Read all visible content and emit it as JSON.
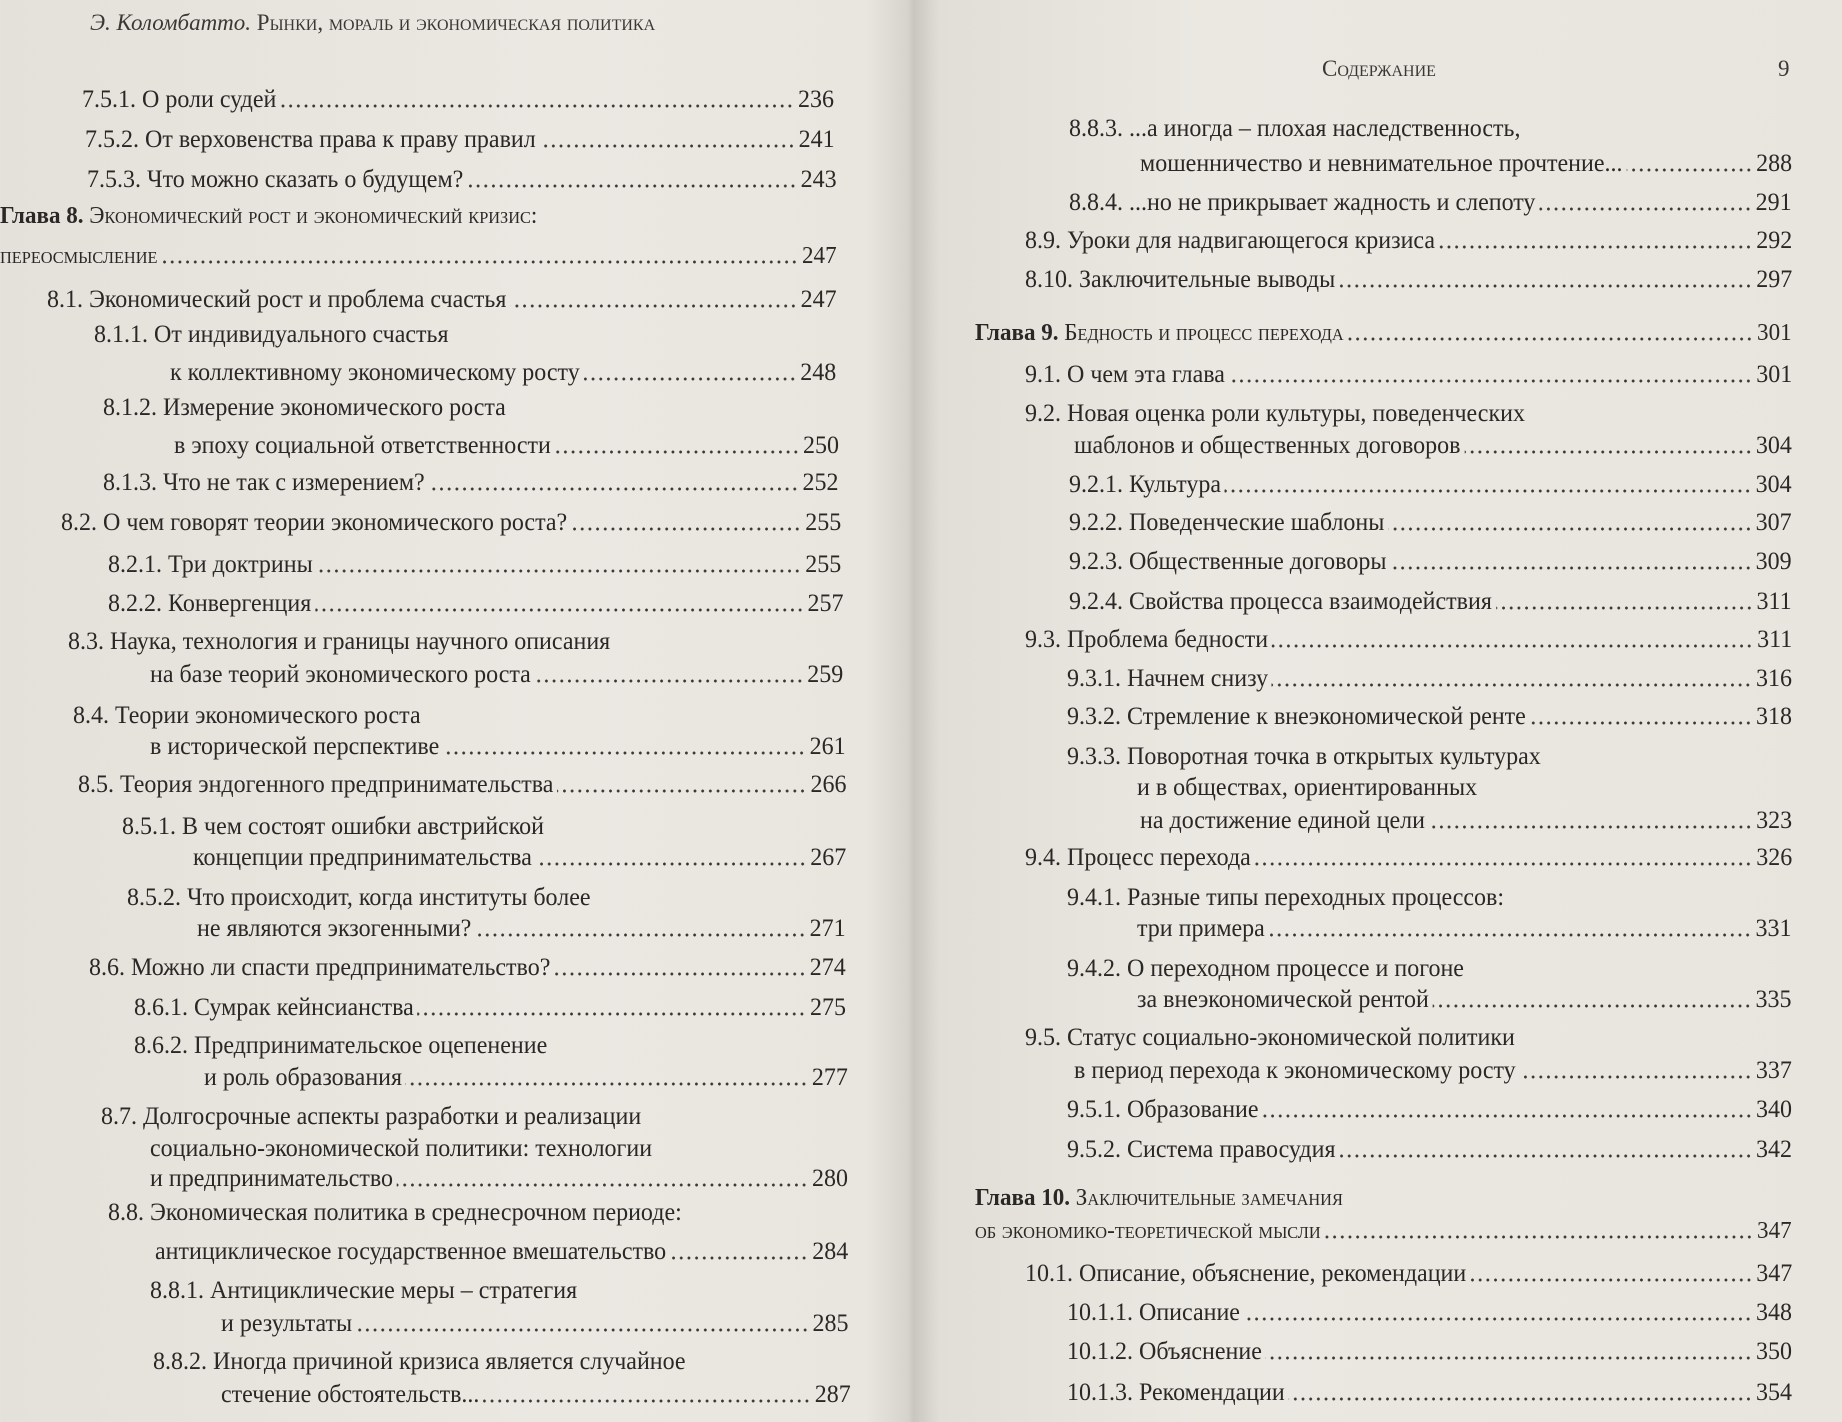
{
  "left_page": {
    "running_head": {
      "author": "Э. Коломбатто.",
      "title": "Рынки, мораль и экономическая политика"
    },
    "entries": [
      {
        "lines": [
          "7.5.1. О роли судей"
        ],
        "page": "236"
      },
      {
        "lines": [
          "7.5.2. От верховенства права к праву правил"
        ],
        "page": "241"
      },
      {
        "lines": [
          "7.5.3. Что можно сказать о будущем?"
        ],
        "page": "243"
      },
      {
        "chapter": "Глава 8.",
        "lines": [
          "Экономический рост и экономический кризис:",
          "переосмысление"
        ],
        "page": "247"
      },
      {
        "lines": [
          "8.1. Экономический рост и проблема счастья"
        ],
        "page": "247"
      },
      {
        "lines": [
          "8.1.1. От индивидуального счастья",
          "к коллективному экономическому росту"
        ],
        "page": "248"
      },
      {
        "lines": [
          "8.1.2. Измерение экономического роста",
          "в эпоху социальной ответственности"
        ],
        "page": "250"
      },
      {
        "lines": [
          "8.1.3. Что не так с измерением?"
        ],
        "page": "252"
      },
      {
        "lines": [
          "8.2. О чем говорят теории экономического роста?"
        ],
        "page": "255"
      },
      {
        "lines": [
          "8.2.1. Три доктрины"
        ],
        "page": "255"
      },
      {
        "lines": [
          "8.2.2. Конвергенция"
        ],
        "page": "257"
      },
      {
        "lines": [
          "8.3. Наука, технология и границы научного описания",
          "на базе теорий экономического роста"
        ],
        "page": "259"
      },
      {
        "lines": [
          "8.4. Теории экономического роста",
          "в исторической перспективе"
        ],
        "page": "261"
      },
      {
        "lines": [
          "8.5. Теория эндогенного предпринимательства"
        ],
        "page": "266"
      },
      {
        "lines": [
          "8.5.1. В чем состоят ошибки австрийской",
          "концепции предпринимательства"
        ],
        "page": "267"
      },
      {
        "lines": [
          "8.5.2. Что происходит, когда институты более",
          "не являются экзогенными?"
        ],
        "page": "271"
      },
      {
        "lines": [
          "8.6. Можно ли спасти предпринимательство?"
        ],
        "page": "274"
      },
      {
        "lines": [
          "8.6.1. Сумрак кейнсианства"
        ],
        "page": "275"
      },
      {
        "lines": [
          "8.6.2. Предпринимательское оцепенение",
          "и роль образования"
        ],
        "page": "277"
      },
      {
        "lines": [
          "8.7. Долгосрочные аспекты разработки и реализации",
          "социально-экономической политики: технологии",
          "и предпринимательство"
        ],
        "page": "280"
      },
      {
        "lines": [
          "8.8. Экономическая политика в среднесрочном периоде:",
          "антициклическое государственное вмешательство"
        ],
        "page": "284"
      },
      {
        "lines": [
          "8.8.1. Антициклические меры – стратегия",
          "и результаты"
        ],
        "page": "285"
      },
      {
        "lines": [
          "8.8.2. Иногда причиной кризиса является случайное",
          "стечение обстоятельств..."
        ],
        "page": "287"
      }
    ]
  },
  "right_page": {
    "running_head": {
      "title": "Содержание",
      "page_number": "9"
    },
    "entries": [
      {
        "lines": [
          "8.8.3. ...а иногда – плохая наследственность,",
          "мошенничество и невнимательное прочтение..."
        ],
        "page": "288"
      },
      {
        "lines": [
          "8.8.4. ...но не прикрывает жадность и слепоту"
        ],
        "page": "291"
      },
      {
        "lines": [
          "8.9. Уроки для надвигающегося кризиса"
        ],
        "page": "292"
      },
      {
        "lines": [
          "8.10. Заключительные выводы"
        ],
        "page": "297"
      },
      {
        "chapter": "Глава 9.",
        "lines": [
          "Бедность и процесс перехода"
        ],
        "page": "301"
      },
      {
        "lines": [
          "9.1. О чем эта глава"
        ],
        "page": "301"
      },
      {
        "lines": [
          "9.2. Новая оценка роли культуры, поведенческих",
          "шаблонов и общественных договоров"
        ],
        "page": "304"
      },
      {
        "lines": [
          "9.2.1. Культура"
        ],
        "page": "304"
      },
      {
        "lines": [
          "9.2.2. Поведенческие шаблоны"
        ],
        "page": "307"
      },
      {
        "lines": [
          "9.2.3. Общественные договоры"
        ],
        "page": "309"
      },
      {
        "lines": [
          "9.2.4. Свойства процесса взаимодействия"
        ],
        "page": "311"
      },
      {
        "lines": [
          "9.3. Проблема бедности"
        ],
        "page": "311"
      },
      {
        "lines": [
          "9.3.1. Начнем снизу"
        ],
        "page": "316"
      },
      {
        "lines": [
          "9.3.2. Стремление к внеэкономической ренте"
        ],
        "page": "318"
      },
      {
        "lines": [
          "9.3.3. Поворотная точка в открытых культурах",
          "и в обществах, ориентированных",
          "на достижение единой цели"
        ],
        "page": "323"
      },
      {
        "lines": [
          "9.4. Процесс перехода"
        ],
        "page": "326"
      },
      {
        "lines": [
          "9.4.1. Разные типы переходных процессов:",
          "три примера"
        ],
        "page": "331"
      },
      {
        "lines": [
          "9.4.2. О переходном процессе и погоне",
          "за внеэкономической рентой"
        ],
        "page": "335"
      },
      {
        "lines": [
          "9.5. Статус социально-экономической политики",
          "в период перехода к экономическому росту"
        ],
        "page": "337"
      },
      {
        "lines": [
          "9.5.1. Образование"
        ],
        "page": "340"
      },
      {
        "lines": [
          "9.5.2. Система правосудия"
        ],
        "page": "342"
      },
      {
        "chapter": "Глава 10.",
        "lines": [
          "Заключительные замечания",
          "об экономико-теоретической мысли"
        ],
        "page": "347"
      },
      {
        "lines": [
          "10.1. Описание, объяснение, рекомендации"
        ],
        "page": "347"
      },
      {
        "lines": [
          "10.1.1. Описание"
        ],
        "page": "348"
      },
      {
        "lines": [
          "10.1.2. Объяснение"
        ],
        "page": "350"
      },
      {
        "lines": [
          "10.1.3. Рекомендации"
        ],
        "page": "354"
      }
    ]
  }
}
